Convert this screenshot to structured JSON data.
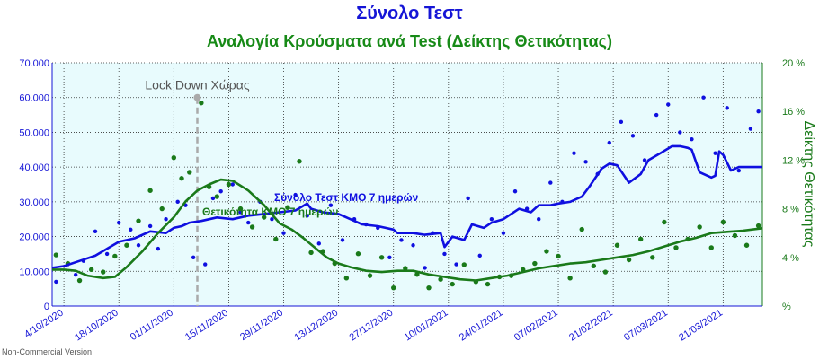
{
  "chart_data": {
    "type": "line",
    "title": "Σύνολο Τεστ",
    "subtitle": "Αναλογία Κρούσματα ανά Test (Δείκτης Θετικότητας)",
    "y2label": "Δείκτης Θετικότητας",
    "ylim": [
      0,
      70000
    ],
    "y2lim": [
      0,
      20
    ],
    "yticks": [
      "0",
      "10.000",
      "20.000",
      "30.000",
      "40.000",
      "50.000",
      "60.000",
      "70.000"
    ],
    "y2ticks": [
      "%",
      "4 %",
      "8 %",
      "12 %",
      "16 %",
      "20 %"
    ],
    "xticks": [
      "4/10/2020",
      "18/10/2020",
      "01/11/2020",
      "15/11/2020",
      "29/11/2020",
      "13/12/2020",
      "27/12/2020",
      "10/01/2021",
      "24/01/2021",
      "07/02/2021",
      "21/02/2021",
      "07/03/2021",
      "21/03/2021"
    ],
    "xrange": [
      "2020-10-01",
      "2021-03-31"
    ],
    "grid": true,
    "annotations": [
      {
        "text": "Lock Down Χώρας",
        "date": "2020-11-07",
        "value": 60000
      }
    ],
    "series": [
      {
        "name": "Σύνολο Τεστ ΚΜΟ 7 ημερών",
        "axis": "left",
        "color": "#0f0fe0",
        "dates": [
          "2020-10-01",
          "2020-10-04",
          "2020-10-08",
          "2020-10-12",
          "2020-10-15",
          "2020-10-18",
          "2020-10-22",
          "2020-10-26",
          "2020-10-30",
          "2020-11-01",
          "2020-11-03",
          "2020-11-05",
          "2020-11-08",
          "2020-11-12",
          "2020-11-16",
          "2020-11-20",
          "2020-11-24",
          "2020-11-28",
          "2020-12-02",
          "2020-12-05",
          "2020-12-06",
          "2020-12-09",
          "2020-12-13",
          "2020-12-16",
          "2020-12-19",
          "2020-12-23",
          "2020-12-25",
          "2020-12-27",
          "2020-12-28",
          "2021-01-01",
          "2021-01-04",
          "2021-01-08",
          "2021-01-09",
          "2021-01-11",
          "2021-01-14",
          "2021-01-16",
          "2021-01-19",
          "2021-01-21",
          "2021-01-24",
          "2021-01-28",
          "2021-01-31",
          "2021-02-02",
          "2021-02-05",
          "2021-02-07",
          "2021-02-10",
          "2021-02-13",
          "2021-02-15",
          "2021-02-18",
          "2021-02-20",
          "2021-02-22",
          "2021-02-25",
          "2021-02-28",
          "2021-03-02",
          "2021-03-05",
          "2021-03-08",
          "2021-03-10",
          "2021-03-12",
          "2021-03-13",
          "2021-03-15",
          "2021-03-18",
          "2021-03-19",
          "2021-03-20",
          "2021-03-21",
          "2021-03-23",
          "2021-03-25",
          "2021-03-31"
        ],
        "values": [
          11000,
          11500,
          13000,
          14500,
          16500,
          18500,
          19500,
          21500,
          21000,
          22500,
          23000,
          24000,
          24500,
          25500,
          25000,
          26000,
          26500,
          27000,
          27500,
          29500,
          28000,
          27000,
          26500,
          25000,
          23500,
          23000,
          22500,
          22000,
          21000,
          21000,
          20500,
          21000,
          17000,
          20000,
          19000,
          23500,
          22500,
          24000,
          25000,
          28000,
          27000,
          29000,
          29000,
          29500,
          30000,
          31500,
          34500,
          39500,
          41000,
          40500,
          35500,
          38000,
          42000,
          44000,
          46000,
          46000,
          45500,
          45000,
          38500,
          37000,
          37500,
          44500,
          43500,
          39000,
          40000,
          40000
        ]
      },
      {
        "name": "Θετικότητα ΚΜΟ 7 ημερών",
        "axis": "right",
        "color": "#1a7a1a",
        "dates": [
          "2020-10-01",
          "2020-10-04",
          "2020-10-07",
          "2020-10-10",
          "2020-10-14",
          "2020-10-17",
          "2020-10-20",
          "2020-10-24",
          "2020-10-28",
          "2020-11-01",
          "2020-11-04",
          "2020-11-07",
          "2020-11-10",
          "2020-11-13",
          "2020-11-16",
          "2020-11-20",
          "2020-11-24",
          "2020-11-28",
          "2020-12-01",
          "2020-12-04",
          "2020-12-07",
          "2020-12-10",
          "2020-12-13",
          "2020-12-16",
          "2020-12-20",
          "2020-12-24",
          "2020-12-28",
          "2021-01-01",
          "2021-01-05",
          "2021-01-09",
          "2021-01-13",
          "2021-01-17",
          "2021-01-21",
          "2021-01-25",
          "2021-01-29",
          "2021-02-02",
          "2021-02-06",
          "2021-02-10",
          "2021-02-14",
          "2021-02-18",
          "2021-02-22",
          "2021-02-26",
          "2021-03-02",
          "2021-03-06",
          "2021-03-10",
          "2021-03-14",
          "2021-03-18",
          "2021-03-22",
          "2021-03-26",
          "2021-03-31"
        ],
        "values": [
          3.0,
          3.0,
          2.9,
          2.5,
          2.3,
          2.4,
          3.2,
          4.5,
          6.0,
          7.3,
          8.6,
          9.5,
          10.0,
          10.4,
          10.3,
          9.5,
          8.3,
          6.8,
          6.3,
          5.6,
          4.8,
          4.0,
          3.5,
          3.2,
          2.9,
          2.8,
          2.9,
          2.9,
          2.6,
          2.4,
          2.2,
          2.1,
          2.3,
          2.5,
          2.8,
          3.1,
          3.3,
          3.5,
          3.6,
          3.8,
          4.0,
          4.2,
          4.5,
          4.9,
          5.3,
          5.6,
          6.0,
          6.1,
          6.2,
          6.4
        ]
      }
    ],
    "scatter": [
      {
        "name": "Σύνολο Τεστ",
        "axis": "left",
        "color": "#0f0fe0",
        "dates": [
          "2020-10-02",
          "2020-10-05",
          "2020-10-07",
          "2020-10-09",
          "2020-10-12",
          "2020-10-15",
          "2020-10-18",
          "2020-10-21",
          "2020-10-23",
          "2020-10-26",
          "2020-10-28",
          "2020-10-30",
          "2020-11-02",
          "2020-11-04",
          "2020-11-06",
          "2020-11-09",
          "2020-11-11",
          "2020-11-13",
          "2020-11-16",
          "2020-11-18",
          "2020-11-20",
          "2020-11-23",
          "2020-11-26",
          "2020-11-29",
          "2020-12-02",
          "2020-12-05",
          "2020-12-08",
          "2020-12-11",
          "2020-12-14",
          "2020-12-17",
          "2020-12-20",
          "2020-12-23",
          "2020-12-26",
          "2020-12-29",
          "2021-01-01",
          "2021-01-04",
          "2021-01-06",
          "2021-01-09",
          "2021-01-12",
          "2021-01-15",
          "2021-01-18",
          "2021-01-21",
          "2021-01-24",
          "2021-01-27",
          "2021-01-30",
          "2021-02-02",
          "2021-02-05",
          "2021-02-08",
          "2021-02-11",
          "2021-02-14",
          "2021-02-17",
          "2021-02-20",
          "2021-02-23",
          "2021-02-26",
          "2021-03-01",
          "2021-03-04",
          "2021-03-07",
          "2021-03-10",
          "2021-03-13",
          "2021-03-16",
          "2021-03-19",
          "2021-03-22",
          "2021-03-25",
          "2021-03-28",
          "2021-03-30"
        ],
        "values": [
          7000,
          12000,
          9000,
          13000,
          21500,
          15000,
          24000,
          22000,
          17500,
          23000,
          16500,
          25000,
          30000,
          29000,
          14000,
          12000,
          31000,
          33000,
          35000,
          27000,
          24000,
          30000,
          25000,
          21000,
          32000,
          26000,
          18000,
          29000,
          19000,
          25000,
          23500,
          22500,
          14000,
          19000,
          17500,
          11000,
          21000,
          15000,
          12000,
          31000,
          14500,
          25000,
          21000,
          33000,
          28000,
          25000,
          35500,
          30000,
          44000,
          41500,
          38000,
          47000,
          53000,
          49000,
          42000,
          55000,
          58000,
          50000,
          48000,
          60000,
          44000,
          57000,
          39000,
          51000,
          56000
        ]
      },
      {
        "name": "Θετικότητα",
        "axis": "right",
        "color": "#1a7a1a",
        "dates": [
          "2020-10-02",
          "2020-10-05",
          "2020-10-08",
          "2020-10-11",
          "2020-10-14",
          "2020-10-17",
          "2020-10-20",
          "2020-10-23",
          "2020-10-26",
          "2020-10-29",
          "2020-11-01",
          "2020-11-03",
          "2020-11-05",
          "2020-11-08",
          "2020-11-10",
          "2020-11-12",
          "2020-11-15",
          "2020-11-18",
          "2020-11-21",
          "2020-11-24",
          "2020-11-27",
          "2020-11-30",
          "2020-12-03",
          "2020-12-06",
          "2020-12-09",
          "2020-12-12",
          "2020-12-15",
          "2020-12-18",
          "2020-12-21",
          "2020-12-24",
          "2020-12-27",
          "2020-12-30",
          "2021-01-02",
          "2021-01-05",
          "2021-01-08",
          "2021-01-11",
          "2021-01-14",
          "2021-01-17",
          "2021-01-20",
          "2021-01-23",
          "2021-01-26",
          "2021-01-29",
          "2021-02-01",
          "2021-02-04",
          "2021-02-07",
          "2021-02-10",
          "2021-02-13",
          "2021-02-16",
          "2021-02-19",
          "2021-02-22",
          "2021-02-25",
          "2021-02-28",
          "2021-03-03",
          "2021-03-06",
          "2021-03-09",
          "2021-03-12",
          "2021-03-15",
          "2021-03-18",
          "2021-03-21",
          "2021-03-24",
          "2021-03-27",
          "2021-03-30"
        ],
        "values": [
          4.2,
          3.5,
          2.1,
          3.0,
          2.8,
          4.1,
          5.0,
          7.0,
          9.5,
          8.0,
          12.2,
          10.5,
          11.0,
          16.7,
          9.8,
          9.0,
          10.0,
          8.0,
          6.5,
          7.3,
          5.5,
          8.1,
          11.9,
          4.4,
          4.5,
          3.5,
          2.3,
          4.3,
          2.5,
          4.0,
          1.5,
          3.1,
          2.6,
          1.5,
          2.2,
          1.8,
          3.4,
          2.0,
          1.8,
          2.4,
          2.5,
          3.0,
          3.5,
          4.5,
          4.1,
          2.3,
          6.3,
          3.3,
          2.8,
          5.0,
          3.8,
          5.5,
          4.0,
          6.9,
          4.8,
          5.5,
          6.5,
          4.8,
          6.9,
          5.8,
          5.0,
          6.6
        ]
      }
    ]
  },
  "footer": "Non-Commercial Version"
}
